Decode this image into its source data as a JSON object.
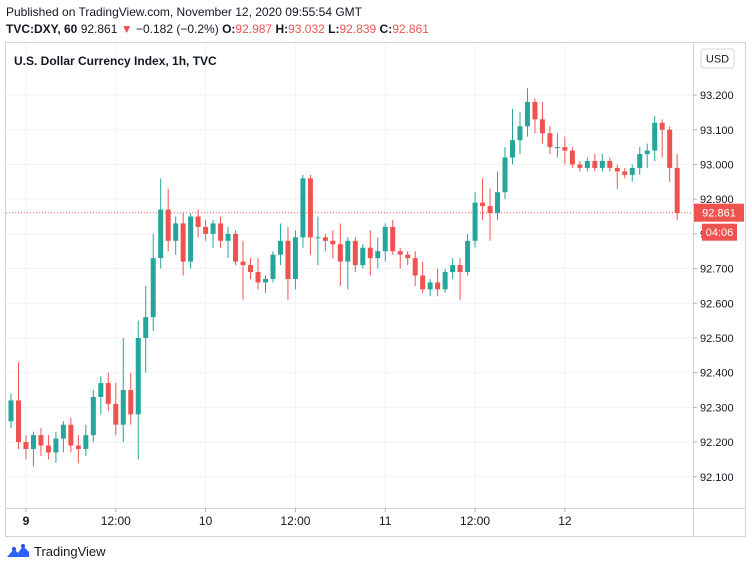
{
  "header": {
    "published": "Published on TradingView.com, November 12, 2020 09:55:54 GMT",
    "symbol": "TVC:DXY, 60",
    "last": "92.861",
    "change": "−0.182 (−0.2%)",
    "o_label": "O:",
    "o_value": "92.987",
    "h_label": "H:",
    "h_value": "93.032",
    "l_label": "L:",
    "l_value": "92.839",
    "c_label": "C:",
    "c_value": "92.861"
  },
  "footer": {
    "brand": "TradingView"
  },
  "colors": {
    "up": "#26a69a",
    "down": "#ef5350",
    "grid": "#f0f3fa",
    "axis_text": "#131722"
  },
  "chart_data": {
    "type": "candlestick",
    "title": "U.S. Dollar Currency Index, 1h, TVC",
    "currency": "USD",
    "y_range": [
      92.01,
      93.35
    ],
    "y_ticks": [
      92.1,
      92.2,
      92.3,
      92.4,
      92.5,
      92.6,
      92.7,
      92.8,
      92.9,
      93.0,
      93.1,
      93.2
    ],
    "y_tick_labels": [
      "92.100",
      "92.200",
      "92.300",
      "92.400",
      "92.500",
      "92.600",
      "92.700",
      "92.800",
      "92.900",
      "93.000",
      "93.100",
      "93.200"
    ],
    "x_ticks": [
      2,
      14,
      26,
      38,
      50,
      62,
      74
    ],
    "x_tick_labels": [
      "9",
      "12:00",
      "10",
      "12:00",
      "11",
      "12:00",
      "12"
    ],
    "last_price": 92.861,
    "last_price_label": "92.861",
    "countdown_label": "04:06",
    "grid": true,
    "candles": [
      [
        92.26,
        92.34,
        92.24,
        92.32
      ],
      [
        92.32,
        92.43,
        92.18,
        92.2
      ],
      [
        92.2,
        92.22,
        92.15,
        92.18
      ],
      [
        92.18,
        92.23,
        92.13,
        92.22
      ],
      [
        92.22,
        92.24,
        92.16,
        92.19
      ],
      [
        92.19,
        92.22,
        92.15,
        92.17
      ],
      [
        92.17,
        92.23,
        92.14,
        92.21
      ],
      [
        92.21,
        92.26,
        92.17,
        92.25
      ],
      [
        92.25,
        92.27,
        92.17,
        92.19
      ],
      [
        92.19,
        92.22,
        92.14,
        92.18
      ],
      [
        92.18,
        92.25,
        92.16,
        92.22
      ],
      [
        92.22,
        92.35,
        92.2,
        92.33
      ],
      [
        92.33,
        92.39,
        92.28,
        92.37
      ],
      [
        92.37,
        92.4,
        92.29,
        92.31
      ],
      [
        92.31,
        92.37,
        92.22,
        92.25
      ],
      [
        92.25,
        92.5,
        92.2,
        92.35
      ],
      [
        92.35,
        92.4,
        92.25,
        92.28
      ],
      [
        92.28,
        92.55,
        92.15,
        92.5
      ],
      [
        92.5,
        92.65,
        92.4,
        92.56
      ],
      [
        92.56,
        92.8,
        92.52,
        92.73
      ],
      [
        92.73,
        92.96,
        92.7,
        92.87
      ],
      [
        92.87,
        92.93,
        92.75,
        92.78
      ],
      [
        92.78,
        92.85,
        92.74,
        92.83
      ],
      [
        92.83,
        92.86,
        92.68,
        92.72
      ],
      [
        92.72,
        92.86,
        92.7,
        92.85
      ],
      [
        92.85,
        92.87,
        92.79,
        92.82
      ],
      [
        92.82,
        92.84,
        92.78,
        92.8
      ],
      [
        92.8,
        92.84,
        92.76,
        92.83
      ],
      [
        92.83,
        92.85,
        92.76,
        92.78
      ],
      [
        92.78,
        92.82,
        92.73,
        92.8
      ],
      [
        92.8,
        92.81,
        92.71,
        92.72
      ],
      [
        92.72,
        92.78,
        92.61,
        92.71
      ],
      [
        92.71,
        92.73,
        92.67,
        92.69
      ],
      [
        92.69,
        92.73,
        92.64,
        92.66
      ],
      [
        92.66,
        92.68,
        92.63,
        92.67
      ],
      [
        92.67,
        92.75,
        92.66,
        92.74
      ],
      [
        92.74,
        92.83,
        92.71,
        92.78
      ],
      [
        92.78,
        92.82,
        92.61,
        92.67
      ],
      [
        92.67,
        92.81,
        92.64,
        92.79
      ],
      [
        92.79,
        92.97,
        92.76,
        92.96
      ],
      [
        92.96,
        92.97,
        92.74,
        92.79
      ],
      [
        92.79,
        92.85,
        92.71,
        92.79
      ],
      [
        92.79,
        92.8,
        92.75,
        92.78
      ],
      [
        92.78,
        92.81,
        92.73,
        92.77
      ],
      [
        92.77,
        92.83,
        92.65,
        92.72
      ],
      [
        92.72,
        92.79,
        92.64,
        92.78
      ],
      [
        92.78,
        92.79,
        92.69,
        92.71
      ],
      [
        92.71,
        92.77,
        92.7,
        92.76
      ],
      [
        92.76,
        92.81,
        92.68,
        92.73
      ],
      [
        92.73,
        92.79,
        92.7,
        92.75
      ],
      [
        92.75,
        92.83,
        92.72,
        92.82
      ],
      [
        92.82,
        92.84,
        92.74,
        92.75
      ],
      [
        92.75,
        92.76,
        92.7,
        92.74
      ],
      [
        92.74,
        92.75,
        92.71,
        92.73
      ],
      [
        92.73,
        92.75,
        92.65,
        92.68
      ],
      [
        92.68,
        92.72,
        92.63,
        92.64
      ],
      [
        92.64,
        92.67,
        92.62,
        92.66
      ],
      [
        92.66,
        92.7,
        92.62,
        92.64
      ],
      [
        92.64,
        92.7,
        92.63,
        92.69
      ],
      [
        92.69,
        92.73,
        92.67,
        92.71
      ],
      [
        92.71,
        92.73,
        92.61,
        92.69
      ],
      [
        92.69,
        92.8,
        92.68,
        92.78
      ],
      [
        92.78,
        92.92,
        92.76,
        92.89
      ],
      [
        92.89,
        92.96,
        92.84,
        92.88
      ],
      [
        92.88,
        92.93,
        92.78,
        92.86
      ],
      [
        92.86,
        92.98,
        92.84,
        92.92
      ],
      [
        92.92,
        93.05,
        92.9,
        93.02
      ],
      [
        93.02,
        93.16,
        93.0,
        93.07
      ],
      [
        93.07,
        93.15,
        93.03,
        93.11
      ],
      [
        93.11,
        93.22,
        93.08,
        93.18
      ],
      [
        93.18,
        93.19,
        93.09,
        93.13
      ],
      [
        93.13,
        93.18,
        93.06,
        93.09
      ],
      [
        93.09,
        93.11,
        93.03,
        93.05
      ],
      [
        93.05,
        93.09,
        93.02,
        93.05
      ],
      [
        93.05,
        93.08,
        93.0,
        93.04
      ],
      [
        93.04,
        93.05,
        92.99,
        93.0
      ],
      [
        93.0,
        93.01,
        92.98,
        92.99
      ],
      [
        92.99,
        93.02,
        92.98,
        93.01
      ],
      [
        93.01,
        93.03,
        92.98,
        92.99
      ],
      [
        92.99,
        93.03,
        92.98,
        93.01
      ],
      [
        93.01,
        93.02,
        92.98,
        92.99
      ],
      [
        92.99,
        93.0,
        92.93,
        92.98
      ],
      [
        92.98,
        92.99,
        92.96,
        92.97
      ],
      [
        92.97,
        93.0,
        92.95,
        92.99
      ],
      [
        92.99,
        93.05,
        92.97,
        93.03
      ],
      [
        93.03,
        93.06,
        92.99,
        93.04
      ],
      [
        93.04,
        93.14,
        93.01,
        93.12
      ],
      [
        93.12,
        93.13,
        93.02,
        93.1
      ],
      [
        93.1,
        93.11,
        92.95,
        92.99
      ],
      [
        92.99,
        93.03,
        92.84,
        92.86
      ]
    ]
  }
}
